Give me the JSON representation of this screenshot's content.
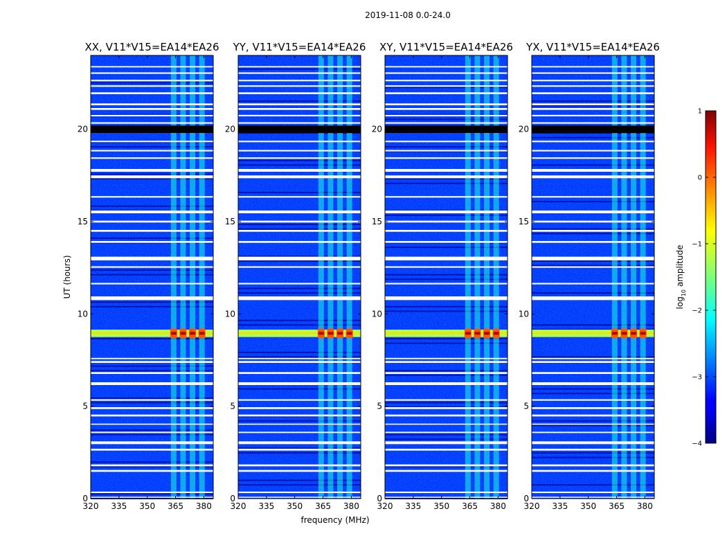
{
  "chart_data": {
    "type": "heatmap",
    "suptitle": "2019-11-08 0.0-24.0",
    "xlabel": "frequency (MHz)",
    "ylabel": "UT (hours)",
    "x_range": [
      320,
      385
    ],
    "y_range": [
      0,
      24
    ],
    "x_ticks": [
      320,
      335,
      350,
      365,
      380
    ],
    "y_ticks": [
      0,
      5,
      10,
      15,
      20
    ],
    "colorbar": {
      "label_main": "log",
      "label_sub": "10",
      "label_rest": " amplitude",
      "range": [
        -4,
        1
      ],
      "ticks": [
        {
          "value": 1,
          "label": "1"
        },
        {
          "value": 0,
          "label": "0"
        },
        {
          "value": -1,
          "label": "−1"
        },
        {
          "value": -2,
          "label": "−2"
        },
        {
          "value": -3,
          "label": "−3"
        },
        {
          "value": -4,
          "label": "−4"
        }
      ]
    },
    "panels": [
      {
        "title": "XX, V11*V15=EA14*EA26",
        "line_offset": 0
      },
      {
        "title": "YY, V11*V15=EA14*EA26",
        "line_offset": 1
      },
      {
        "title": "XY, V11*V15=EA14*EA26",
        "line_offset": 2
      },
      {
        "title": "YX, V11*V15=EA14*EA26",
        "line_offset": 3
      }
    ],
    "background_log_amplitude": -3.1,
    "rfi_channel_centers_mhz": [
      364,
      369,
      374,
      379
    ],
    "rfi_channel_log_amplitude": -2.0,
    "flagged_hours": [
      [
        0.05,
        0.1
      ],
      [
        0.3,
        0.38
      ],
      [
        1.45,
        1.55
      ],
      [
        1.75,
        1.85
      ],
      [
        2.6,
        2.7
      ],
      [
        2.95,
        3.1
      ],
      [
        3.55,
        3.62
      ],
      [
        4.0,
        4.06
      ],
      [
        4.45,
        4.55
      ],
      [
        4.85,
        4.95
      ],
      [
        5.3,
        5.38
      ],
      [
        6.15,
        6.3
      ],
      [
        6.75,
        6.85
      ],
      [
        7.35,
        7.45
      ],
      [
        7.55,
        7.62
      ],
      [
        10.75,
        10.95
      ],
      [
        11.6,
        11.68
      ],
      [
        12.5,
        12.58
      ],
      [
        12.9,
        13.1
      ],
      [
        13.85,
        13.95
      ],
      [
        14.45,
        14.55
      ],
      [
        14.95,
        15.05
      ],
      [
        15.45,
        15.6
      ],
      [
        16.3,
        16.38
      ],
      [
        17.35,
        17.5
      ],
      [
        17.7,
        17.85
      ],
      [
        18.4,
        18.48
      ],
      [
        18.8,
        18.88
      ],
      [
        19.3,
        19.38
      ],
      [
        20.3,
        20.38
      ],
      [
        20.7,
        20.78
      ],
      [
        21.05,
        21.15
      ],
      [
        21.3,
        21.4
      ],
      [
        21.9,
        22.0
      ],
      [
        22.3,
        22.38
      ],
      [
        22.6,
        22.68
      ],
      [
        23.0,
        23.08
      ],
      [
        23.35,
        23.42
      ]
    ],
    "zero_hours": [
      [
        19.8,
        20.2
      ]
    ],
    "bright_band_hours": [
      [
        8.75,
        9.15
      ]
    ],
    "bright_band_log_amplitude": -1.2,
    "rfi_burst_hour": 8.95,
    "rfi_burst_log_amplitude": 0.1
  }
}
